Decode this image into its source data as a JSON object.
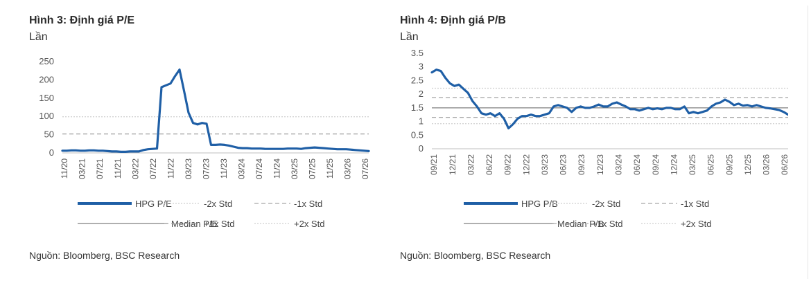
{
  "charts": [
    {
      "title": "Hình 3: Định giá P/E",
      "unit": "Lần",
      "source": "Nguồn: Bloomberg, BSC Research",
      "chart_data": {
        "type": "line",
        "ylim": [
          0,
          250
        ],
        "yticks": [
          0,
          50,
          100,
          150,
          200,
          250
        ],
        "xticks": [
          "11/20",
          "03/21",
          "07/21",
          "11/21",
          "03/22",
          "07/22",
          "11/22",
          "03/23",
          "07/23",
          "11/23",
          "03/24",
          "07/24",
          "11/24",
          "03/25",
          "07/25",
          "11/25",
          "03/26",
          "07/26"
        ],
        "grid": false,
        "series": [
          {
            "name": "HPG P/E",
            "color": "#1f5fa6",
            "x": [
              0,
              1,
              2,
              3,
              4,
              5,
              6,
              7,
              8,
              9,
              10,
              11,
              12,
              13,
              14,
              15,
              16,
              17,
              18,
              19,
              20,
              21,
              22,
              23,
              24,
              25,
              26,
              27,
              28,
              29,
              30,
              31,
              32,
              33,
              34,
              35,
              36,
              37,
              38,
              39,
              40,
              41,
              42,
              43,
              44,
              45,
              46,
              47,
              48,
              49,
              50,
              51,
              52,
              53,
              54,
              55,
              56,
              57,
              58,
              59,
              60,
              61,
              62,
              63,
              64,
              65,
              66,
              67,
              68
            ],
            "values": [
              6,
              6,
              7,
              7,
              6,
              6,
              7,
              7,
              6,
              6,
              5,
              4,
              4,
              3,
              3,
              4,
              4,
              4,
              8,
              10,
              11,
              12,
              180,
              185,
              190,
              210,
              228,
              170,
              110,
              82,
              78,
              82,
              80,
              22,
              22,
              23,
              22,
              20,
              17,
              14,
              13,
              13,
              12,
              12,
              12,
              11,
              11,
              11,
              11,
              11,
              12,
              12,
              12,
              11,
              13,
              14,
              15,
              14,
              13,
              12,
              11,
              10,
              10,
              10,
              9,
              8,
              7,
              6,
              5
            ]
          },
          {
            "name": "-2x Std",
            "values": [],
            "style": "dotted",
            "color": "#cfcfcf"
          },
          {
            "name": "-1x Std",
            "values": [],
            "style": "dashed",
            "color": "#a6a6a6"
          },
          {
            "name": "Median P/E",
            "values": [],
            "style": "solid",
            "color": "#7f7f7f"
          },
          {
            "name": "+1x Std",
            "values": [
              52,
              52
            ],
            "style": "dashed",
            "color": "#a6a6a6"
          },
          {
            "name": "+2x Std",
            "values": [
              99,
              99
            ],
            "style": "dotted",
            "color": "#cfcfcf"
          }
        ],
        "legend": "bottom"
      }
    },
    {
      "title": "Hình 4: Định giá P/B",
      "unit": "Lần",
      "source": "Nguồn: Bloomberg, BSC Research",
      "chart_data": {
        "type": "line",
        "ylim": [
          0,
          3.5
        ],
        "yticks": [
          0,
          0.5,
          1,
          1.5,
          2,
          2.5,
          3,
          3.5
        ],
        "xticks": [
          "09/21",
          "12/21",
          "03/22",
          "06/22",
          "09/22",
          "12/22",
          "03/23",
          "06/23",
          "09/23",
          "12/23",
          "03/24",
          "06/24",
          "09/24",
          "12/24",
          "03/25",
          "06/25",
          "09/25",
          "12/25",
          "03/26",
          "06/26"
        ],
        "grid": false,
        "series": [
          {
            "name": "HPG P/B",
            "color": "#1f5fa6",
            "x": [
              0,
              0.5,
              1,
              1.5,
              2,
              2.5,
              3,
              3.5,
              4,
              4.5,
              5,
              5.5,
              6,
              6.5,
              7,
              7.5,
              8,
              8.5,
              9,
              9.5,
              10,
              10.5,
              11,
              11.5,
              12,
              12.5,
              13,
              13.5,
              14,
              14.5,
              15,
              15.5,
              16,
              16.5,
              17,
              17.5,
              18,
              18.5,
              19,
              19.5,
              20,
              20.5,
              21,
              21.5,
              22,
              22.5,
              23,
              23.5,
              24,
              24.5,
              25,
              25.5,
              26,
              26.5,
              27,
              27.5,
              28,
              28.5,
              29,
              29.5,
              30,
              30.5,
              31,
              31.5,
              32,
              32.5,
              33,
              33.5,
              34,
              34.5,
              35,
              35.5,
              36,
              36.5,
              37,
              37.5,
              38,
              38.5,
              39,
              39.5
            ],
            "values": [
              2.8,
              2.9,
              2.85,
              2.6,
              2.4,
              2.3,
              2.35,
              2.2,
              2.05,
              1.75,
              1.55,
              1.3,
              1.25,
              1.3,
              1.2,
              1.3,
              1.1,
              0.75,
              0.9,
              1.1,
              1.2,
              1.2,
              1.25,
              1.2,
              1.2,
              1.25,
              1.3,
              1.55,
              1.6,
              1.55,
              1.5,
              1.35,
              1.5,
              1.55,
              1.5,
              1.5,
              1.55,
              1.62,
              1.55,
              1.55,
              1.65,
              1.7,
              1.62,
              1.55,
              1.45,
              1.45,
              1.4,
              1.45,
              1.5,
              1.45,
              1.48,
              1.45,
              1.5,
              1.5,
              1.45,
              1.45,
              1.55,
              1.3,
              1.35,
              1.3,
              1.35,
              1.4,
              1.55,
              1.65,
              1.7,
              1.8,
              1.72,
              1.6,
              1.65,
              1.58,
              1.6,
              1.55,
              1.6,
              1.55,
              1.5,
              1.48,
              1.45,
              1.42,
              1.35,
              1.25
            ]
          },
          {
            "name": "-2x Std",
            "values": [
              0.92,
              0.92
            ],
            "style": "dotted",
            "color": "#cfcfcf"
          },
          {
            "name": "-1x Std",
            "values": [
              1.15,
              1.15
            ],
            "style": "dashed",
            "color": "#a6a6a6"
          },
          {
            "name": "Median P/B",
            "values": [
              1.5,
              1.5
            ],
            "style": "solid",
            "color": "#7f7f7f"
          },
          {
            "name": "+1x Std",
            "values": [
              1.88,
              1.88
            ],
            "style": "dashed",
            "color": "#a6a6a6"
          },
          {
            "name": "+2x Std",
            "values": [
              2.22,
              2.22
            ],
            "style": "dotted",
            "color": "#cfcfcf"
          }
        ],
        "legend": "bottom"
      }
    }
  ]
}
